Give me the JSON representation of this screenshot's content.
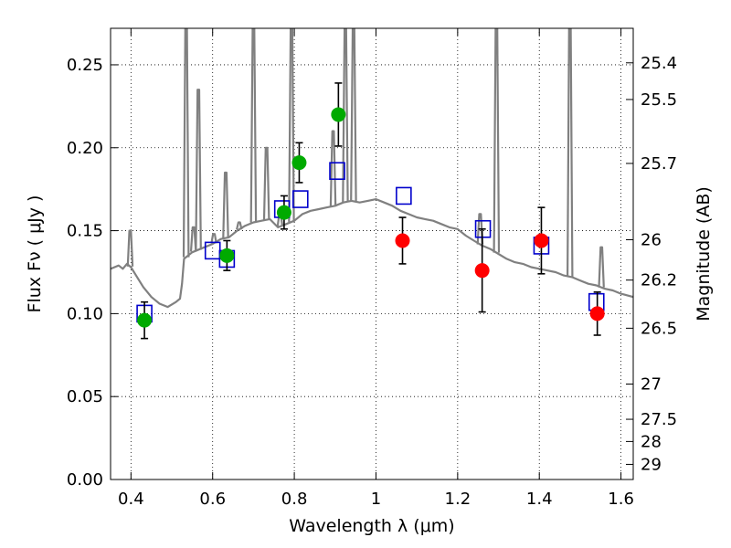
{
  "chart_data": {
    "type": "scatter",
    "xlabel": "Wavelength  λ (μm)",
    "ylabel": "Flux  Fν  ( μJy )",
    "y2label": "Magnitude (AB)",
    "xlim": [
      0.35,
      1.63
    ],
    "ylim": [
      0.0,
      0.272
    ],
    "grid": true,
    "x_ticks": [
      {
        "value": 0.4,
        "label": "0.4"
      },
      {
        "value": 0.6,
        "label": "0.6"
      },
      {
        "value": 0.8,
        "label": "0.8"
      },
      {
        "value": 1.0,
        "label": "1"
      },
      {
        "value": 1.2,
        "label": "1.2"
      },
      {
        "value": 1.4,
        "label": "1.4"
      },
      {
        "value": 1.6,
        "label": "1.6"
      }
    ],
    "y_ticks": [
      {
        "value": 0.0,
        "label": "0.00"
      },
      {
        "value": 0.05,
        "label": "0.05"
      },
      {
        "value": 0.1,
        "label": "0.10"
      },
      {
        "value": 0.15,
        "label": "0.15"
      },
      {
        "value": 0.2,
        "label": "0.20"
      },
      {
        "value": 0.25,
        "label": "0.25"
      }
    ],
    "y2_ticks": [
      {
        "value": 25.4,
        "label": "25.4"
      },
      {
        "value": 25.5,
        "label": "25.5"
      },
      {
        "value": 25.7,
        "label": "25.7"
      },
      {
        "value": 26.0,
        "label": "26"
      },
      {
        "value": 26.2,
        "label": "26.2"
      },
      {
        "value": 26.5,
        "label": "26.5"
      },
      {
        "value": 27.0,
        "label": "27"
      },
      {
        "value": 27.5,
        "label": "27.5"
      },
      {
        "value": 28.0,
        "label": "28"
      },
      {
        "value": 29.0,
        "label": "29"
      }
    ],
    "series": [
      {
        "kind": "line",
        "color": "#808080",
        "x": [
          0.35,
          0.37,
          0.38,
          0.39,
          0.4,
          0.41,
          0.42,
          0.43,
          0.45,
          0.47,
          0.49,
          0.51,
          0.52,
          0.525,
          0.53,
          0.55,
          0.58,
          0.6,
          0.62,
          0.64,
          0.66,
          0.68,
          0.7,
          0.72,
          0.74,
          0.76,
          0.78,
          0.8,
          0.82,
          0.84,
          0.86,
          0.88,
          0.9,
          0.92,
          0.94,
          0.96,
          0.98,
          1.0,
          1.02,
          1.04,
          1.06,
          1.08,
          1.1,
          1.12,
          1.14,
          1.16,
          1.18,
          1.2,
          1.22,
          1.24,
          1.26,
          1.28,
          1.3,
          1.32,
          1.34,
          1.36,
          1.38,
          1.4,
          1.42,
          1.44,
          1.46,
          1.48,
          1.5,
          1.52,
          1.54,
          1.56,
          1.58,
          1.6,
          1.63
        ],
        "y": [
          0.127,
          0.129,
          0.127,
          0.13,
          0.128,
          0.124,
          0.12,
          0.116,
          0.11,
          0.106,
          0.104,
          0.107,
          0.109,
          0.118,
          0.133,
          0.137,
          0.14,
          0.142,
          0.145,
          0.146,
          0.15,
          0.153,
          0.155,
          0.156,
          0.157,
          0.152,
          0.154,
          0.156,
          0.16,
          0.162,
          0.163,
          0.164,
          0.165,
          0.167,
          0.168,
          0.167,
          0.168,
          0.169,
          0.167,
          0.165,
          0.162,
          0.16,
          0.158,
          0.157,
          0.156,
          0.154,
          0.152,
          0.151,
          0.147,
          0.144,
          0.141,
          0.139,
          0.136,
          0.133,
          0.131,
          0.13,
          0.128,
          0.127,
          0.126,
          0.125,
          0.123,
          0.122,
          0.12,
          0.118,
          0.117,
          0.115,
          0.114,
          0.112,
          0.11
        ]
      },
      {
        "kind": "emission-lines",
        "color": "#808080",
        "lines": [
          {
            "x": 0.398,
            "peak": 0.15
          },
          {
            "x": 0.535,
            "peak": 0.272
          },
          {
            "x": 0.553,
            "peak": 0.152
          },
          {
            "x": 0.565,
            "peak": 0.235
          },
          {
            "x": 0.603,
            "peak": 0.148
          },
          {
            "x": 0.632,
            "peak": 0.185
          },
          {
            "x": 0.665,
            "peak": 0.155
          },
          {
            "x": 0.7,
            "peak": 0.272
          },
          {
            "x": 0.732,
            "peak": 0.2
          },
          {
            "x": 0.765,
            "peak": 0.16
          },
          {
            "x": 0.793,
            "peak": 0.272
          },
          {
            "x": 0.895,
            "peak": 0.21
          },
          {
            "x": 0.925,
            "peak": 0.272
          },
          {
            "x": 0.945,
            "peak": 0.272
          },
          {
            "x": 1.255,
            "peak": 0.16
          },
          {
            "x": 1.295,
            "peak": 0.272
          },
          {
            "x": 1.475,
            "peak": 0.272
          },
          {
            "x": 1.552,
            "peak": 0.14
          }
        ]
      },
      {
        "kind": "squares",
        "color": "#0000cc",
        "x": [
          0.433,
          0.6,
          0.635,
          0.77,
          0.815,
          0.905,
          1.068,
          1.262,
          1.405,
          1.54
        ],
        "y": [
          0.1,
          0.138,
          0.133,
          0.163,
          0.169,
          0.186,
          0.171,
          0.151,
          0.141,
          0.107
        ]
      },
      {
        "kind": "points",
        "color": "#00aa00",
        "x": [
          0.433,
          0.635,
          0.775,
          0.812,
          0.908
        ],
        "y": [
          0.096,
          0.135,
          0.161,
          0.191,
          0.22
        ],
        "yerr": [
          0.011,
          0.009,
          0.01,
          0.012,
          0.019
        ]
      },
      {
        "kind": "points",
        "color": "#ff0000",
        "x": [
          1.065,
          1.26,
          1.405,
          1.542
        ],
        "y": [
          0.144,
          0.126,
          0.144,
          0.1
        ],
        "yerr": [
          0.014,
          0.025,
          0.02,
          0.013
        ]
      }
    ]
  }
}
